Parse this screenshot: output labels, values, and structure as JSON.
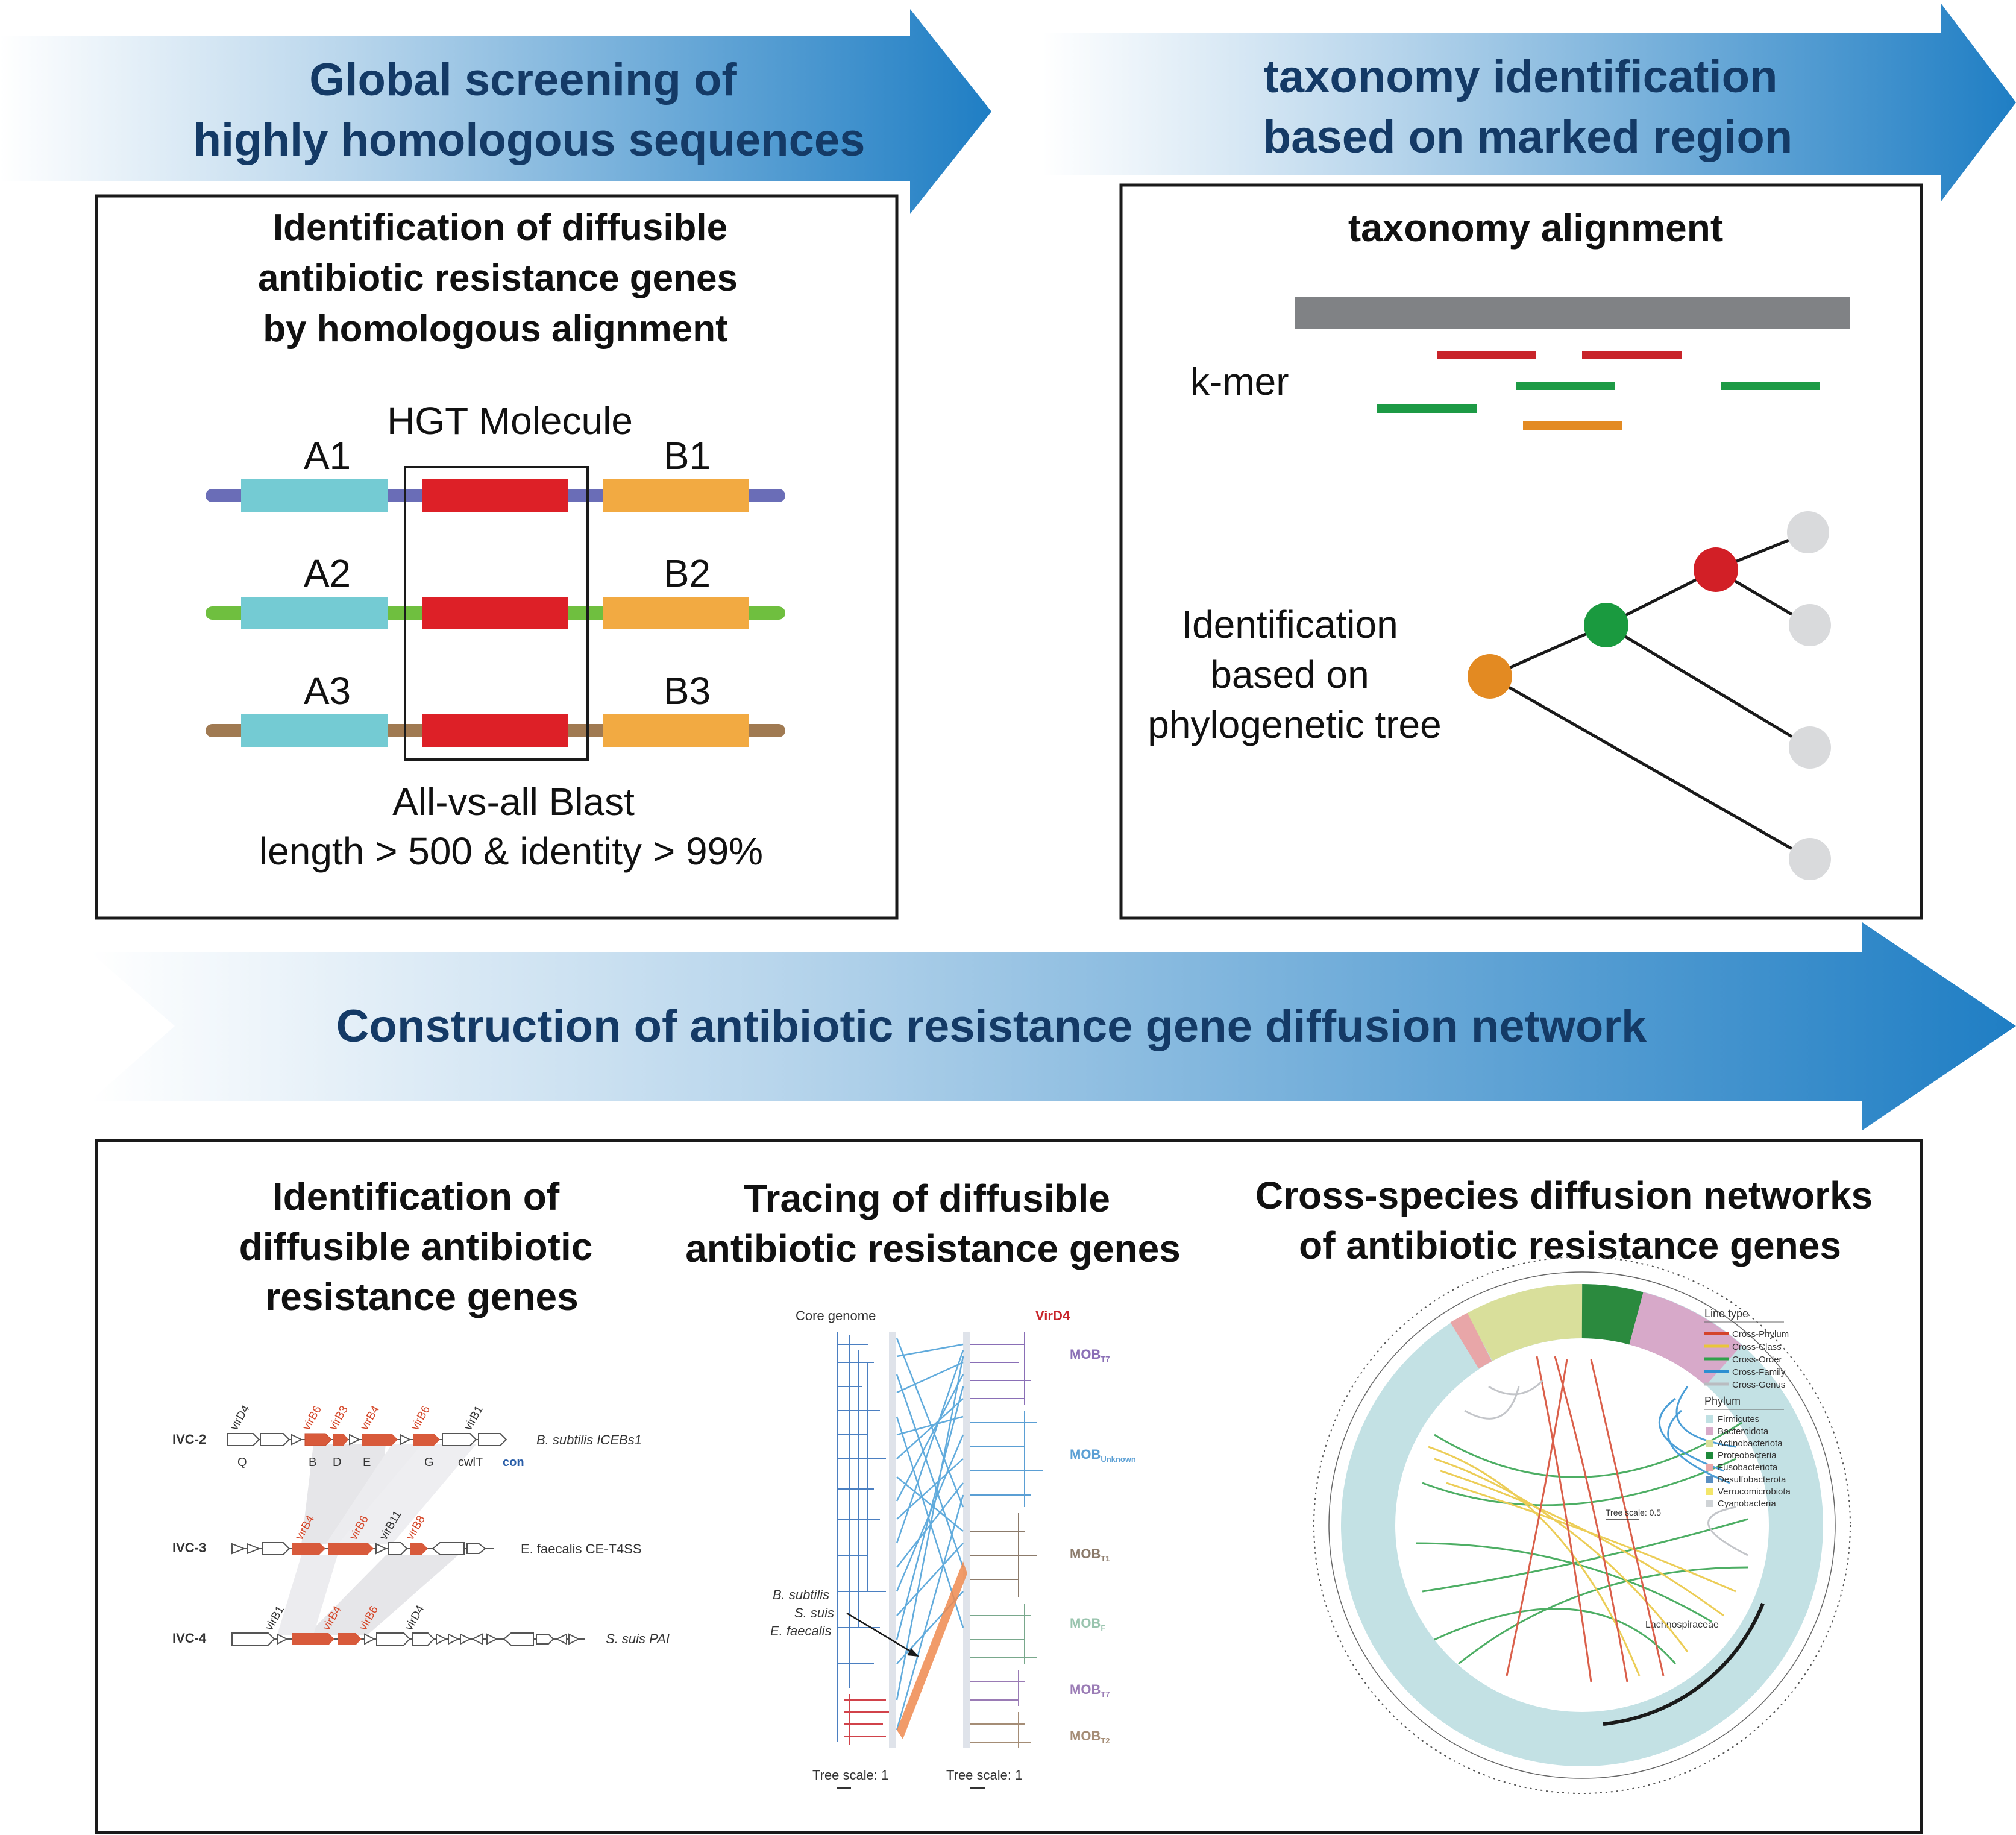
{
  "arrows": {
    "top_left": [
      "Global screening of",
      "highly homologous sequences"
    ],
    "top_right": [
      "taxonomy identification",
      "based on marked region"
    ],
    "middle": "Construction of antibiotic resistance gene diffusion network"
  },
  "panel_hgt": {
    "title": [
      "Identification of diffusible",
      "antibiotic resistance genes",
      "by homologous alignment"
    ],
    "hgt_label": "HGT Molecule",
    "a_labels": [
      "A1",
      "A2",
      "A3"
    ],
    "b_labels": [
      "B1",
      "B2",
      "B3"
    ],
    "blast": [
      "All-vs-all Blast",
      "length > 500 & identity > 99%"
    ]
  },
  "panel_taxonomy": {
    "title": "taxonomy alignment",
    "kmer": "k-mer",
    "tree_label": [
      "Identification",
      "based on",
      "phylogenetic tree"
    ]
  },
  "bottom": {
    "col1_title": [
      "Identification of",
      "diffusible antibiotic",
      "resistance genes"
    ],
    "col2_title": [
      "Tracing of diffusible",
      "antibiotic resistance genes"
    ],
    "col3_title": [
      "Cross-species diffusion networks",
      "of antibiotic resistance genes"
    ]
  },
  "ivc": {
    "rows": [
      {
        "label": "IVC-2",
        "organism": "B. subtilis ICEBs1",
        "top_genes": [
          "virD4",
          "virB6",
          "virB3",
          "virB4",
          "virB6",
          "virB1"
        ],
        "bottom_genes": [
          "Q",
          "B",
          "D",
          "E",
          "G",
          "cwlT",
          "con"
        ]
      },
      {
        "label": "IVC-3",
        "organism": "E. faecalis CE-T4SS",
        "top_genes": [
          "virB4",
          "virB6",
          "virB11",
          "virB8"
        ]
      },
      {
        "label": "IVC-4",
        "organism": "S. suis PAI",
        "top_genes": [
          "virB1",
          "virB4",
          "virB6",
          "virD4"
        ]
      }
    ]
  },
  "tracing": {
    "core_genome": "Core genome",
    "virD4": "VirD4",
    "mob_labels": [
      {
        "main": "MOB",
        "sub": "T7"
      },
      {
        "main": "MOB",
        "sub": "Unknown"
      },
      {
        "main": "MOB",
        "sub": "T1"
      },
      {
        "main": "MOB",
        "sub": "F"
      },
      {
        "main": "MOB",
        "sub": "T7"
      },
      {
        "main": "MOB",
        "sub": "T2"
      }
    ],
    "species": [
      "B. subtilis",
      "S. suis",
      "E. faecalis"
    ],
    "tree_scale_left": "Tree scale: 1",
    "tree_scale_right": "Tree scale: 1"
  },
  "network": {
    "line_type_title": "Line type",
    "line_types": [
      {
        "name": "Cross-Phylum",
        "color": "#d4442b"
      },
      {
        "name": "Cross-Class",
        "color": "#e9c53a"
      },
      {
        "name": "Cross-Order",
        "color": "#2fa14a"
      },
      {
        "name": "Cross-Family",
        "color": "#2d8fd1"
      },
      {
        "name": "Cross-Genus",
        "color": "#b9bcc0"
      }
    ],
    "phylum_title": "Phylum",
    "phyla": [
      {
        "name": "Firmicutes",
        "color": "#bfe0e3"
      },
      {
        "name": "Bacteroidota",
        "color": "#d7a9c9"
      },
      {
        "name": "Actinobacteriota",
        "color": "#d9df9b"
      },
      {
        "name": "Proteobacteria",
        "color": "#1e8a3a"
      },
      {
        "name": "Fusobacteriota",
        "color": "#e8a6a8"
      },
      {
        "name": "Desulfobacterota",
        "color": "#5a8fc1"
      },
      {
        "name": "Verrucomicrobiota",
        "color": "#f3e66a"
      },
      {
        "name": "Cyanobacteria",
        "color": "#cfd3d6"
      }
    ],
    "tree_scale": "Tree scale: 0.5",
    "clade": "Lachnospiraceae"
  }
}
